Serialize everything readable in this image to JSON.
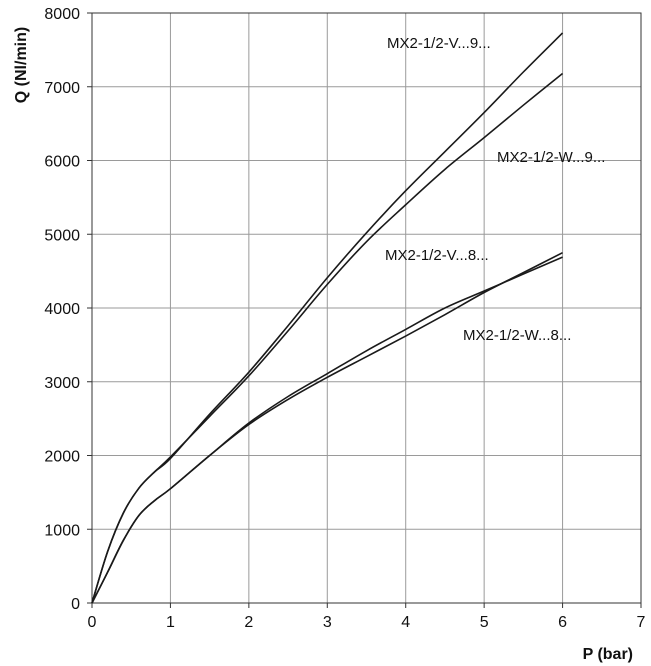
{
  "chart_data": {
    "type": "line",
    "xlabel": "P (bar)",
    "ylabel": "Q (Nl/min)",
    "xlim": [
      0,
      7
    ],
    "ylim": [
      0,
      8000
    ],
    "x_ticks": [
      "0",
      "1",
      "2",
      "3",
      "4",
      "5",
      "6",
      "7"
    ],
    "y_ticks": [
      "0",
      "1000",
      "2000",
      "3000",
      "4000",
      "5000",
      "6000",
      "7000",
      "8000"
    ],
    "grid": true,
    "series": [
      {
        "name": "MX2-1/2-V...9...",
        "x": [
          0,
          0.2,
          0.4,
          0.6,
          0.8,
          1,
          1.5,
          2,
          2.5,
          3,
          3.5,
          4,
          4.5,
          5,
          5.5,
          6
        ],
        "y": [
          0,
          700,
          1220,
          1560,
          1780,
          1960,
          2560,
          3130,
          3760,
          4410,
          5020,
          5590,
          6120,
          6650,
          7200,
          7730
        ]
      },
      {
        "name": "MX2-1/2-W...9...",
        "x": [
          0,
          0.2,
          0.4,
          0.6,
          0.8,
          1,
          1.5,
          2,
          2.5,
          3,
          3.5,
          4,
          4.5,
          5,
          5.5,
          6
        ],
        "y": [
          0,
          700,
          1220,
          1560,
          1780,
          1980,
          2530,
          3080,
          3690,
          4320,
          4900,
          5400,
          5880,
          6310,
          6750,
          7180
        ]
      },
      {
        "name": "MX2-1/2-V...8...",
        "x": [
          0,
          0.2,
          0.4,
          0.6,
          0.8,
          1,
          1.5,
          2,
          2.5,
          3,
          3.5,
          4,
          4.5,
          5,
          5.5,
          6
        ],
        "y": [
          0,
          420,
          850,
          1190,
          1390,
          1550,
          2000,
          2420,
          2760,
          3060,
          3340,
          3620,
          3910,
          4210,
          4480,
          4750
        ]
      },
      {
        "name": "MX2-1/2-W...8...",
        "x": [
          0,
          0.2,
          0.4,
          0.6,
          0.8,
          1,
          1.5,
          2,
          2.5,
          3,
          3.5,
          4,
          4.5,
          5,
          5.5,
          6
        ],
        "y": [
          0,
          420,
          850,
          1190,
          1390,
          1550,
          2000,
          2440,
          2800,
          3110,
          3420,
          3710,
          4000,
          4230,
          4460,
          4690
        ]
      }
    ]
  }
}
